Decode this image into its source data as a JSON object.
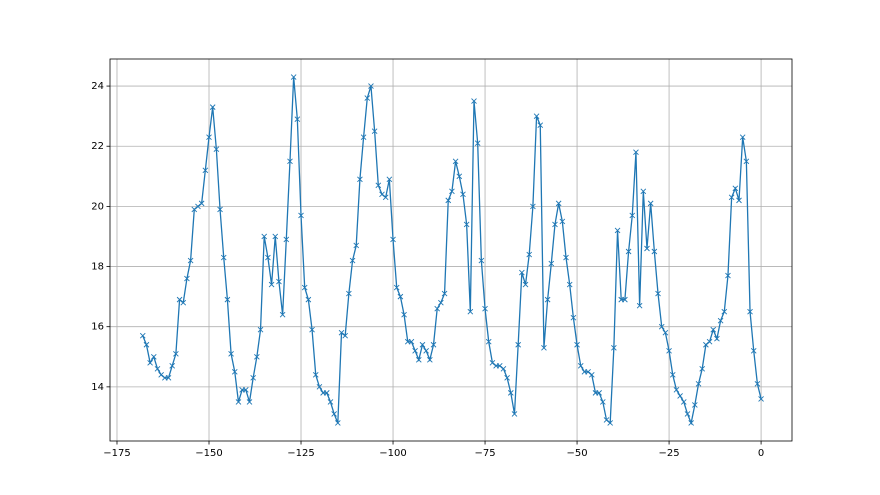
{
  "chart_data": {
    "type": "line",
    "marker": "x",
    "color": "#1f77b4",
    "grid": true,
    "x": [
      -168,
      -167,
      -166,
      -165,
      -164,
      -163,
      -162,
      -161,
      -160,
      -159,
      -158,
      -157,
      -156,
      -155,
      -154,
      -153,
      -152,
      -151,
      -150,
      -149,
      -148,
      -147,
      -146,
      -145,
      -144,
      -143,
      -142,
      -141,
      -140,
      -139,
      -138,
      -137,
      -136,
      -135,
      -134,
      -133,
      -132,
      -131,
      -130,
      -129,
      -128,
      -127,
      -126,
      -125,
      -124,
      -123,
      -122,
      -121,
      -120,
      -119,
      -118,
      -117,
      -116,
      -115,
      -114,
      -113,
      -112,
      -111,
      -110,
      -109,
      -108,
      -107,
      -106,
      -105,
      -104,
      -103,
      -102,
      -101,
      -100,
      -99,
      -98,
      -97,
      -96,
      -95,
      -94,
      -93,
      -92,
      -91,
      -90,
      -89,
      -88,
      -87,
      -86,
      -85,
      -84,
      -83,
      -82,
      -81,
      -80,
      -79,
      -78,
      -77,
      -76,
      -75,
      -74,
      -73,
      -72,
      -71,
      -70,
      -69,
      -68,
      -67,
      -66,
      -65,
      -64,
      -63,
      -62,
      -61,
      -60,
      -59,
      -58,
      -57,
      -56,
      -55,
      -54,
      -53,
      -52,
      -51,
      -50,
      -49,
      -48,
      -47,
      -46,
      -45,
      -44,
      -43,
      -42,
      -41,
      -40,
      -39,
      -38,
      -37,
      -36,
      -35,
      -34,
      -33,
      -32,
      -31,
      -30,
      -29,
      -28,
      -27,
      -26,
      -25,
      -24,
      -23,
      -22,
      -21,
      -20,
      -19,
      -18,
      -17,
      -16,
      -15,
      -14,
      -13,
      -12,
      -11,
      -10,
      -9,
      -8,
      -7,
      -6,
      -5,
      -4,
      -3,
      -2,
      -1,
      0
    ],
    "values": [
      15.7,
      15.4,
      14.8,
      15.0,
      14.6,
      14.4,
      14.3,
      14.3,
      14.7,
      15.1,
      16.9,
      16.8,
      17.6,
      18.2,
      19.9,
      20.0,
      20.1,
      21.2,
      22.3,
      23.3,
      21.9,
      19.9,
      18.3,
      16.9,
      15.1,
      14.5,
      13.5,
      13.9,
      13.9,
      13.5,
      14.3,
      15.0,
      15.9,
      19.0,
      18.3,
      17.4,
      19.0,
      17.5,
      16.4,
      18.9,
      21.5,
      24.3,
      22.9,
      19.7,
      17.3,
      16.9,
      15.9,
      14.4,
      14.0,
      13.8,
      13.8,
      13.5,
      13.1,
      12.8,
      15.8,
      15.7,
      17.1,
      18.2,
      18.7,
      20.9,
      22.3,
      23.6,
      24.0,
      22.5,
      20.7,
      20.4,
      20.3,
      20.9,
      18.9,
      17.3,
      17.0,
      16.4,
      15.5,
      15.5,
      15.2,
      14.9,
      15.4,
      15.2,
      14.9,
      15.4,
      16.6,
      16.8,
      17.1,
      20.2,
      20.5,
      21.5,
      21.0,
      20.4,
      19.4,
      16.5,
      23.5,
      22.1,
      18.2,
      16.6,
      15.5,
      14.8,
      14.7,
      14.7,
      14.6,
      14.3,
      13.8,
      13.1,
      15.4,
      17.8,
      17.4,
      18.4,
      20.0,
      23.0,
      22.7,
      15.3,
      16.9,
      18.1,
      19.4,
      20.1,
      19.5,
      18.3,
      17.4,
      16.3,
      15.4,
      14.7,
      14.5,
      14.5,
      14.4,
      13.8,
      13.8,
      13.5,
      12.9,
      12.8,
      15.3,
      19.2,
      16.9,
      16.9,
      18.5,
      19.7,
      21.8,
      16.7,
      20.5,
      18.6,
      20.1,
      18.5,
      17.1,
      16.0,
      15.8,
      15.2,
      14.4,
      13.9,
      13.7,
      13.5,
      13.1,
      12.8,
      13.4,
      14.1,
      14.6,
      15.4,
      15.5,
      15.9,
      15.6,
      16.2,
      16.5,
      17.7,
      20.3,
      20.6,
      20.2,
      22.3,
      21.5,
      16.5,
      15.2,
      14.1,
      13.6
    ],
    "xlim": [
      -176.9,
      8.4
    ],
    "xticks": [
      {
        "value": -175,
        "label": "−175"
      },
      {
        "value": -150,
        "label": "−150"
      },
      {
        "value": -125,
        "label": "−125"
      },
      {
        "value": -100,
        "label": "−100"
      },
      {
        "value": -75,
        "label": "−75"
      },
      {
        "value": -50,
        "label": "−50"
      },
      {
        "value": -25,
        "label": "−25"
      },
      0
    ],
    "ylim": [
      12.2,
      24.9
    ],
    "yticks": [
      14,
      16,
      18,
      20,
      22,
      24
    ]
  }
}
